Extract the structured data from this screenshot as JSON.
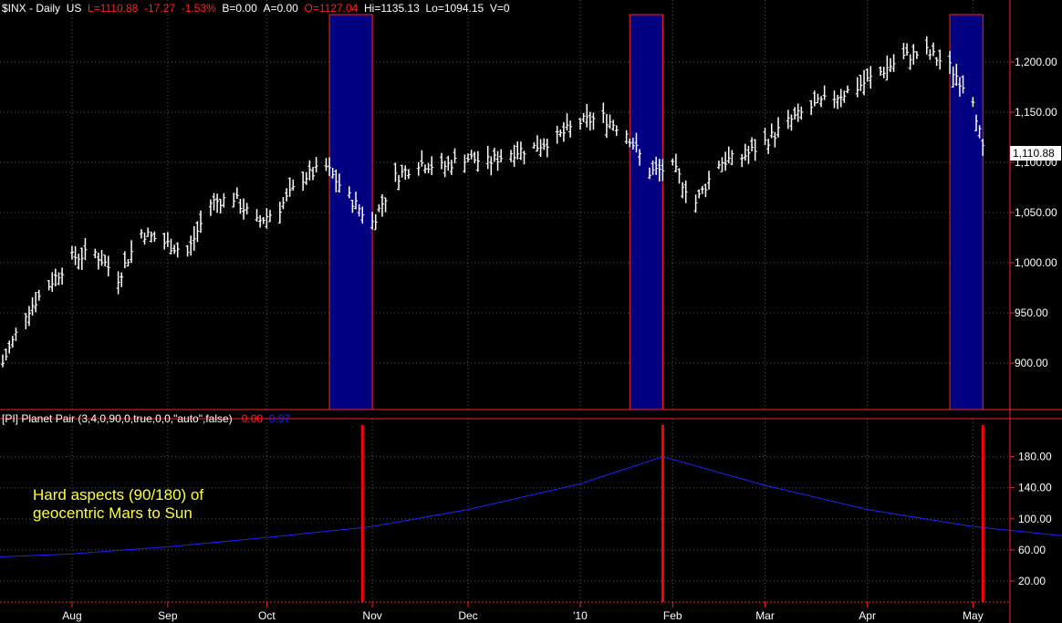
{
  "header": {
    "symbol": "$INX",
    "sep1": " - ",
    "interval": "Daily",
    "market": "US",
    "last": "L=1110.88",
    "change": "-17.27",
    "change_pct": "-1.53%",
    "bid": "B=0.00",
    "ask": "A=0.00",
    "open": "O=1127.04",
    "high": "Hi=1135.13",
    "low": "Lo=1094.15",
    "volume": "V=0"
  },
  "indicator_header": {
    "label": "[PI] Planet Pair (3,4,0,90,0,true,0,0,\"auto\",false)",
    "value_red": "0.00",
    "value_blue": "0.97"
  },
  "annotation": {
    "line1": "Hard aspects (90/180) of",
    "line2": "geocentric Mars to Sun"
  },
  "last_price_tag": "1,110.88",
  "colors": {
    "background": "#000000",
    "bars": "#ffffff",
    "highlight": "#000080",
    "highlight_border": "#ff2020",
    "aspect_line": "#2020ff",
    "marker": "#ff0000",
    "axis_text": "#ffffff",
    "annotation": "#ffff33"
  },
  "chart_data": [
    {
      "type": "ohlc",
      "title": "",
      "y_axis_ticks": [
        "900.00",
        "950.00",
        "1,000.00",
        "1,050.00",
        "1,100.00",
        "1,150.00",
        "1,200.00"
      ],
      "ylim": [
        860,
        1240
      ],
      "x_tick_labels": [
        "Aug",
        "Sep",
        "Oct",
        "Nov",
        "Dec",
        "'10",
        "Feb",
        "Mar",
        "Apr",
        "May"
      ],
      "last_price": 1110.88,
      "highlight_windows": [
        {
          "start": "2009-10-20",
          "end": "2009-11-02"
        },
        {
          "start": "2010-01-19",
          "end": "2010-01-29"
        },
        {
          "start": "2010-04-26",
          "end": "2010-05-06"
        }
      ],
      "approx_closes": [
        {
          "date": "2009-07-13",
          "close": 900
        },
        {
          "date": "2009-07-20",
          "close": 950
        },
        {
          "date": "2009-07-27",
          "close": 978
        },
        {
          "date": "2009-08-03",
          "close": 1005
        },
        {
          "date": "2009-08-10",
          "close": 1010
        },
        {
          "date": "2009-08-17",
          "close": 985
        },
        {
          "date": "2009-08-24",
          "close": 1030
        },
        {
          "date": "2009-08-31",
          "close": 1020
        },
        {
          "date": "2009-09-07",
          "close": 1010
        },
        {
          "date": "2009-09-14",
          "close": 1060
        },
        {
          "date": "2009-09-21",
          "close": 1065
        },
        {
          "date": "2009-09-28",
          "close": 1040
        },
        {
          "date": "2009-10-05",
          "close": 1055
        },
        {
          "date": "2009-10-12",
          "close": 1085
        },
        {
          "date": "2009-10-19",
          "close": 1095
        },
        {
          "date": "2009-10-26",
          "close": 1065
        },
        {
          "date": "2009-11-02",
          "close": 1040
        },
        {
          "date": "2009-11-09",
          "close": 1085
        },
        {
          "date": "2009-11-16",
          "close": 1100
        },
        {
          "date": "2009-11-23",
          "close": 1095
        },
        {
          "date": "2009-11-30",
          "close": 1105
        },
        {
          "date": "2009-12-07",
          "close": 1100
        },
        {
          "date": "2009-12-14",
          "close": 1110
        },
        {
          "date": "2009-12-21",
          "close": 1115
        },
        {
          "date": "2009-12-28",
          "close": 1125
        },
        {
          "date": "2010-01-04",
          "close": 1140
        },
        {
          "date": "2010-01-11",
          "close": 1145
        },
        {
          "date": "2010-01-18",
          "close": 1130
        },
        {
          "date": "2010-01-25",
          "close": 1090
        },
        {
          "date": "2010-02-01",
          "close": 1095
        },
        {
          "date": "2010-02-08",
          "close": 1060
        },
        {
          "date": "2010-02-15",
          "close": 1100
        },
        {
          "date": "2010-02-22",
          "close": 1105
        },
        {
          "date": "2010-03-01",
          "close": 1120
        },
        {
          "date": "2010-03-08",
          "close": 1140
        },
        {
          "date": "2010-03-15",
          "close": 1155
        },
        {
          "date": "2010-03-22",
          "close": 1165
        },
        {
          "date": "2010-03-29",
          "close": 1175
        },
        {
          "date": "2010-04-05",
          "close": 1190
        },
        {
          "date": "2010-04-12",
          "close": 1205
        },
        {
          "date": "2010-04-19",
          "close": 1210
        },
        {
          "date": "2010-04-26",
          "close": 1195
        },
        {
          "date": "2010-05-03",
          "close": 1165
        },
        {
          "date": "2010-05-06",
          "close": 1110.88
        }
      ]
    },
    {
      "type": "line",
      "title": "",
      "y_axis_ticks": [
        "20.00",
        "60.00",
        "100.00",
        "140.00",
        "180.00"
      ],
      "ylim": [
        0,
        190
      ],
      "series": [
        {
          "values": [
            {
              "date": "2009-07-06",
              "y": 50
            },
            {
              "date": "2009-08-03",
              "y": 55
            },
            {
              "date": "2009-09-01",
              "y": 64
            },
            {
              "date": "2009-10-01",
              "y": 76
            },
            {
              "date": "2009-11-02",
              "y": 90
            },
            {
              "date": "2009-12-01",
              "y": 112
            },
            {
              "date": "2010-01-04",
              "y": 145
            },
            {
              "date": "2010-01-29",
              "y": 180
            },
            {
              "date": "2010-03-01",
              "y": 143
            },
            {
              "date": "2010-04-01",
              "y": 112
            },
            {
              "date": "2010-05-03",
              "y": 90
            },
            {
              "date": "2010-05-31",
              "y": 78
            }
          ]
        }
      ],
      "event_markers": [
        {
          "date": "2009-10-30",
          "label": "90"
        },
        {
          "date": "2010-01-29",
          "label": "180"
        },
        {
          "date": "2010-05-06",
          "label": "90"
        }
      ]
    }
  ]
}
